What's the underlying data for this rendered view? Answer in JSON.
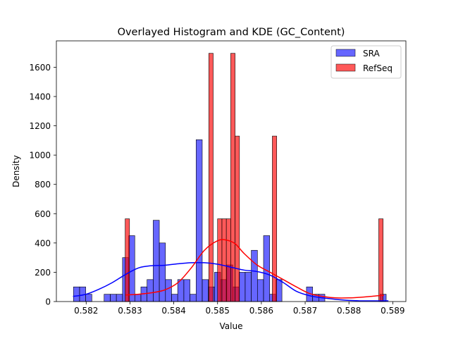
{
  "chart_data": {
    "type": "histogram",
    "title": "Overlayed Histogram and KDE (GC_Content)",
    "xlabel": "Value",
    "ylabel": "Density",
    "xlim": [
      0.58132,
      0.5893
    ],
    "ylim": [
      0,
      1780
    ],
    "xticks": [
      0.582,
      0.583,
      0.584,
      0.585,
      0.586,
      0.587,
      0.588,
      0.589
    ],
    "xtick_labels": [
      "0.582",
      "0.583",
      "0.584",
      "0.585",
      "0.586",
      "0.587",
      "0.588",
      "0.589"
    ],
    "yticks": [
      0,
      200,
      400,
      600,
      800,
      1000,
      1200,
      1400,
      1600
    ],
    "ytick_labels": [
      "0",
      "200",
      "400",
      "600",
      "800",
      "1000",
      "1200",
      "1400",
      "1600"
    ],
    "grid": false,
    "legend_position": "top-right",
    "series": [
      {
        "name": "SRA",
        "color": "#0000ff",
        "bar_alpha": 0.6,
        "bins": [
          {
            "x0": 0.58171,
            "x1": 0.58185,
            "value": 100
          },
          {
            "x0": 0.58185,
            "x1": 0.58199,
            "value": 100
          },
          {
            "x0": 0.58199,
            "x1": 0.58213,
            "value": 50
          },
          {
            "x0": 0.58241,
            "x1": 0.58255,
            "value": 50
          },
          {
            "x0": 0.58255,
            "x1": 0.58269,
            "value": 50
          },
          {
            "x0": 0.58269,
            "x1": 0.58283,
            "value": 50
          },
          {
            "x0": 0.58283,
            "x1": 0.58297,
            "value": 300
          },
          {
            "x0": 0.58297,
            "x1": 0.58311,
            "value": 450
          },
          {
            "x0": 0.58311,
            "x1": 0.58325,
            "value": 50
          },
          {
            "x0": 0.58325,
            "x1": 0.58339,
            "value": 100
          },
          {
            "x0": 0.58339,
            "x1": 0.58353,
            "value": 150
          },
          {
            "x0": 0.58353,
            "x1": 0.58367,
            "value": 555
          },
          {
            "x0": 0.58367,
            "x1": 0.58381,
            "value": 400
          },
          {
            "x0": 0.58381,
            "x1": 0.58395,
            "value": 150
          },
          {
            "x0": 0.58395,
            "x1": 0.58409,
            "value": 50
          },
          {
            "x0": 0.58409,
            "x1": 0.58423,
            "value": 150
          },
          {
            "x0": 0.58423,
            "x1": 0.58437,
            "value": 150
          },
          {
            "x0": 0.58437,
            "x1": 0.58451,
            "value": 50
          },
          {
            "x0": 0.58451,
            "x1": 0.58465,
            "value": 1105
          },
          {
            "x0": 0.58465,
            "x1": 0.58479,
            "value": 150
          },
          {
            "x0": 0.58479,
            "x1": 0.58493,
            "value": 100
          },
          {
            "x0": 0.58493,
            "x1": 0.58507,
            "value": 200
          },
          {
            "x0": 0.58507,
            "x1": 0.58521,
            "value": 150
          },
          {
            "x0": 0.58521,
            "x1": 0.58535,
            "value": 250
          },
          {
            "x0": 0.58535,
            "x1": 0.58549,
            "value": 100
          },
          {
            "x0": 0.58549,
            "x1": 0.58563,
            "value": 200
          },
          {
            "x0": 0.58563,
            "x1": 0.58577,
            "value": 200
          },
          {
            "x0": 0.58577,
            "x1": 0.58591,
            "value": 350
          },
          {
            "x0": 0.58591,
            "x1": 0.58605,
            "value": 150
          },
          {
            "x0": 0.58605,
            "x1": 0.58619,
            "value": 450
          },
          {
            "x0": 0.58619,
            "x1": 0.58633,
            "value": 50
          },
          {
            "x0": 0.58633,
            "x1": 0.58647,
            "value": 150
          },
          {
            "x0": 0.58703,
            "x1": 0.58717,
            "value": 100
          },
          {
            "x0": 0.58717,
            "x1": 0.58731,
            "value": 50
          },
          {
            "x0": 0.58731,
            "x1": 0.58745,
            "value": 50
          },
          {
            "x0": 0.58871,
            "x1": 0.58885,
            "value": 50
          }
        ],
        "kde": {
          "x": [
            0.5817,
            0.582,
            0.5823,
            0.5826,
            0.5829,
            0.5832,
            0.5835,
            0.5838,
            0.5841,
            0.5844,
            0.5847,
            0.585,
            0.5853,
            0.5856,
            0.5859,
            0.5862,
            0.5865,
            0.5868,
            0.5871,
            0.5874,
            0.5877,
            0.588,
            0.5883,
            0.5886,
            0.5889
          ],
          "y": [
            35,
            50,
            85,
            130,
            185,
            230,
            245,
            248,
            258,
            265,
            265,
            255,
            235,
            215,
            205,
            180,
            130,
            70,
            40,
            25,
            15,
            8,
            5,
            5,
            5
          ]
        }
      },
      {
        "name": "RefSeq",
        "color": "#ff0000",
        "bar_alpha": 0.65,
        "bins": [
          {
            "x0": 0.58289,
            "x1": 0.58299,
            "value": 565
          },
          {
            "x0": 0.5848,
            "x1": 0.5849,
            "value": 1695
          },
          {
            "x0": 0.585,
            "x1": 0.5851,
            "value": 565
          },
          {
            "x0": 0.5851,
            "x1": 0.5852,
            "value": 565
          },
          {
            "x0": 0.5852,
            "x1": 0.5853,
            "value": 565
          },
          {
            "x0": 0.5853,
            "x1": 0.5854,
            "value": 1695
          },
          {
            "x0": 0.5854,
            "x1": 0.5855,
            "value": 1130
          },
          {
            "x0": 0.58625,
            "x1": 0.58635,
            "value": 1130
          },
          {
            "x0": 0.58868,
            "x1": 0.58878,
            "value": 565
          }
        ],
        "kde": {
          "x": [
            0.5829,
            0.5832,
            0.5835,
            0.5838,
            0.5841,
            0.5844,
            0.5847,
            0.585,
            0.5852,
            0.5854,
            0.5856,
            0.5859,
            0.5862,
            0.5865,
            0.5868,
            0.5871,
            0.5874,
            0.5877,
            0.588,
            0.5883,
            0.5886,
            0.5888
          ],
          "y": [
            45,
            50,
            60,
            80,
            130,
            230,
            350,
            415,
            420,
            395,
            330,
            250,
            200,
            150,
            100,
            55,
            35,
            25,
            25,
            30,
            38,
            42
          ]
        }
      }
    ]
  }
}
